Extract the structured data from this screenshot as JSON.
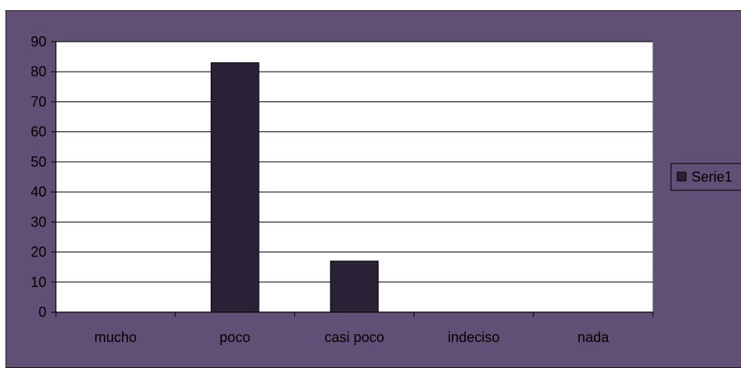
{
  "chart_data": {
    "type": "bar",
    "categories": [
      "mucho",
      "poco",
      "casi poco",
      "indeciso",
      "nada"
    ],
    "series": [
      {
        "name": "Serie1",
        "values": [
          0,
          83,
          17,
          0,
          0
        ],
        "color": "#2a2137"
      }
    ],
    "ylim": [
      0,
      90
    ],
    "yticks": [
      0,
      10,
      20,
      30,
      40,
      50,
      60,
      70,
      80,
      90
    ],
    "grid": true,
    "legend_position": "right",
    "colors": {
      "chart_background": "#614f75",
      "plot_background": "#ffffff",
      "gridline": "#000000",
      "bar": "#2a2137"
    }
  }
}
